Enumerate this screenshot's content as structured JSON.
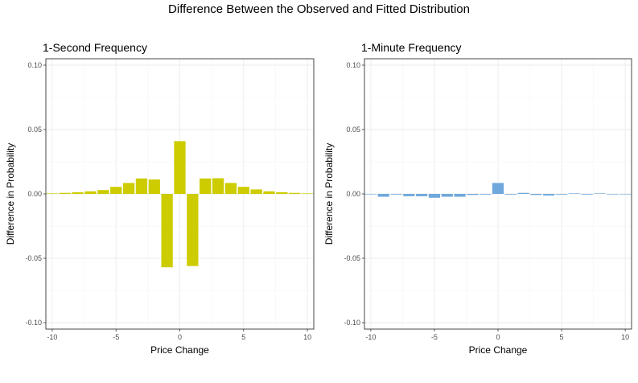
{
  "title": "Difference Between the Observed and Fitted Distribution",
  "chart_data": [
    {
      "type": "bar",
      "title": "1-Second Frequency",
      "xlabel": "Price Change",
      "ylabel": "Difference in Probability",
      "color": "#cccc00",
      "xlim": [
        -10.5,
        10.5
      ],
      "ylim": [
        -0.105,
        0.105
      ],
      "xticks": [
        -10,
        -5,
        0,
        5,
        10
      ],
      "xtick_labels": [
        "-10",
        "-5",
        "0",
        "5",
        "10"
      ],
      "yticks": [
        -0.1,
        -0.05,
        0.0,
        0.05,
        0.1
      ],
      "ytick_labels": [
        "-0.10",
        "-0.05",
        "0.00",
        "0.05",
        "0.10"
      ],
      "x": [
        -10,
        -9,
        -8,
        -7,
        -6,
        -5,
        -4,
        -3,
        -2,
        -1,
        0,
        1,
        2,
        3,
        4,
        5,
        6,
        7,
        8,
        9,
        10
      ],
      "values": [
        0.0004,
        0.0008,
        0.0013,
        0.002,
        0.003,
        0.0055,
        0.0085,
        0.012,
        0.0112,
        -0.057,
        0.041,
        -0.056,
        0.012,
        0.0122,
        0.0085,
        0.0055,
        0.0035,
        0.002,
        0.0013,
        0.0008,
        0.0004
      ]
    },
    {
      "type": "bar",
      "title": "1-Minute Frequency",
      "xlabel": "Price Change",
      "ylabel": "Difference in Probability",
      "color": "#6fa8dc",
      "xlim": [
        -10.5,
        10.5
      ],
      "ylim": [
        -0.105,
        0.105
      ],
      "xticks": [
        -10,
        -5,
        0,
        5,
        10
      ],
      "xtick_labels": [
        "-10",
        "-5",
        "0",
        "5",
        "10"
      ],
      "yticks": [
        -0.1,
        -0.05,
        0.0,
        0.05,
        0.1
      ],
      "ytick_labels": [
        "-0.10",
        "-0.05",
        "0.00",
        "0.05",
        "0.10"
      ],
      "x": [
        -10,
        -9,
        -8,
        -7,
        -6,
        -5,
        -4,
        -3,
        -2,
        -1,
        0,
        1,
        2,
        3,
        4,
        5,
        6,
        7,
        8,
        9,
        10
      ],
      "values": [
        -0.0003,
        -0.0022,
        -0.0005,
        -0.0018,
        -0.0018,
        -0.003,
        -0.0022,
        -0.0022,
        -0.0008,
        -0.0005,
        0.0085,
        -0.0005,
        0.0008,
        -0.0008,
        -0.0012,
        -0.0005,
        0.0004,
        -0.0005,
        0.0004,
        -0.0004,
        -0.0002
      ]
    }
  ]
}
